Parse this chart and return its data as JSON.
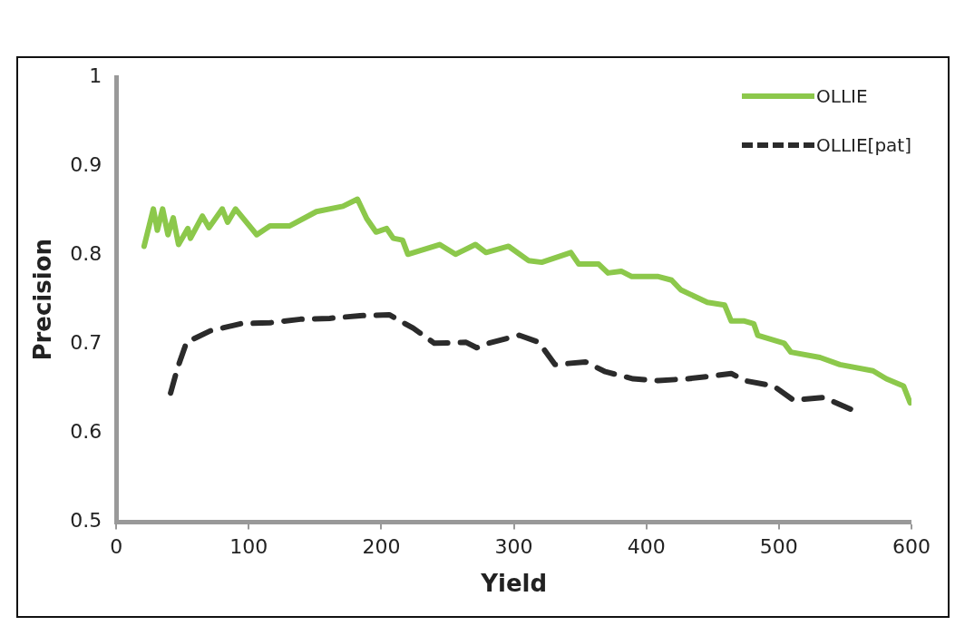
{
  "chart_data": {
    "type": "line",
    "xlabel": "Yield",
    "ylabel": "Precision",
    "xlim": [
      0,
      600
    ],
    "xticks": [
      0,
      100,
      200,
      300,
      400,
      500,
      600
    ],
    "ylim": [
      0.5,
      1
    ],
    "yticks": [
      0.5,
      0.6,
      0.7,
      0.8,
      0.9,
      1
    ],
    "grid": false,
    "legend": "top right",
    "marker": "none",
    "series": [
      {
        "name": "OLLIE",
        "color": "#8cc84b",
        "line_style": "solid",
        "x": [
          21,
          28,
          31,
          35,
          39,
          43,
          47,
          54,
          56,
          65,
          70,
          80,
          84,
          90,
          106,
          116,
          131,
          151,
          171,
          182,
          189,
          196,
          204,
          209,
          216,
          220,
          244,
          256,
          271,
          279,
          296,
          311,
          321,
          343,
          349,
          364,
          371,
          381,
          389,
          409,
          419,
          426,
          446,
          459,
          464,
          474,
          481,
          484,
          504,
          509,
          531,
          546,
          571,
          581,
          594,
          599
        ],
        "values": [
          0.81,
          0.852,
          0.828,
          0.852,
          0.823,
          0.842,
          0.812,
          0.83,
          0.819,
          0.844,
          0.831,
          0.852,
          0.837,
          0.852,
          0.823,
          0.833,
          0.833,
          0.849,
          0.855,
          0.863,
          0.841,
          0.826,
          0.83,
          0.819,
          0.817,
          0.801,
          0.812,
          0.801,
          0.812,
          0.803,
          0.81,
          0.794,
          0.792,
          0.803,
          0.79,
          0.79,
          0.78,
          0.782,
          0.776,
          0.776,
          0.772,
          0.761,
          0.747,
          0.744,
          0.726,
          0.726,
          0.723,
          0.71,
          0.701,
          0.691,
          0.685,
          0.677,
          0.67,
          0.661,
          0.653,
          0.634
        ]
      },
      {
        "name": "OLLIE[pat]",
        "color": "#2b2b2b",
        "line_style": "dashed",
        "x": [
          41,
          46,
          53,
          71,
          94,
          116,
          139,
          161,
          184,
          206,
          224,
          240,
          264,
          272,
          281,
          304,
          319,
          331,
          354,
          369,
          390,
          409,
          431,
          454,
          464,
          474,
          496,
          511,
          534,
          554
        ],
        "values": [
          0.645,
          0.672,
          0.702,
          0.715,
          0.723,
          0.724,
          0.728,
          0.729,
          0.732,
          0.733,
          0.718,
          0.701,
          0.702,
          0.696,
          0.701,
          0.71,
          0.702,
          0.677,
          0.68,
          0.669,
          0.661,
          0.659,
          0.661,
          0.665,
          0.667,
          0.659,
          0.653,
          0.637,
          0.64,
          0.627
        ]
      }
    ]
  }
}
